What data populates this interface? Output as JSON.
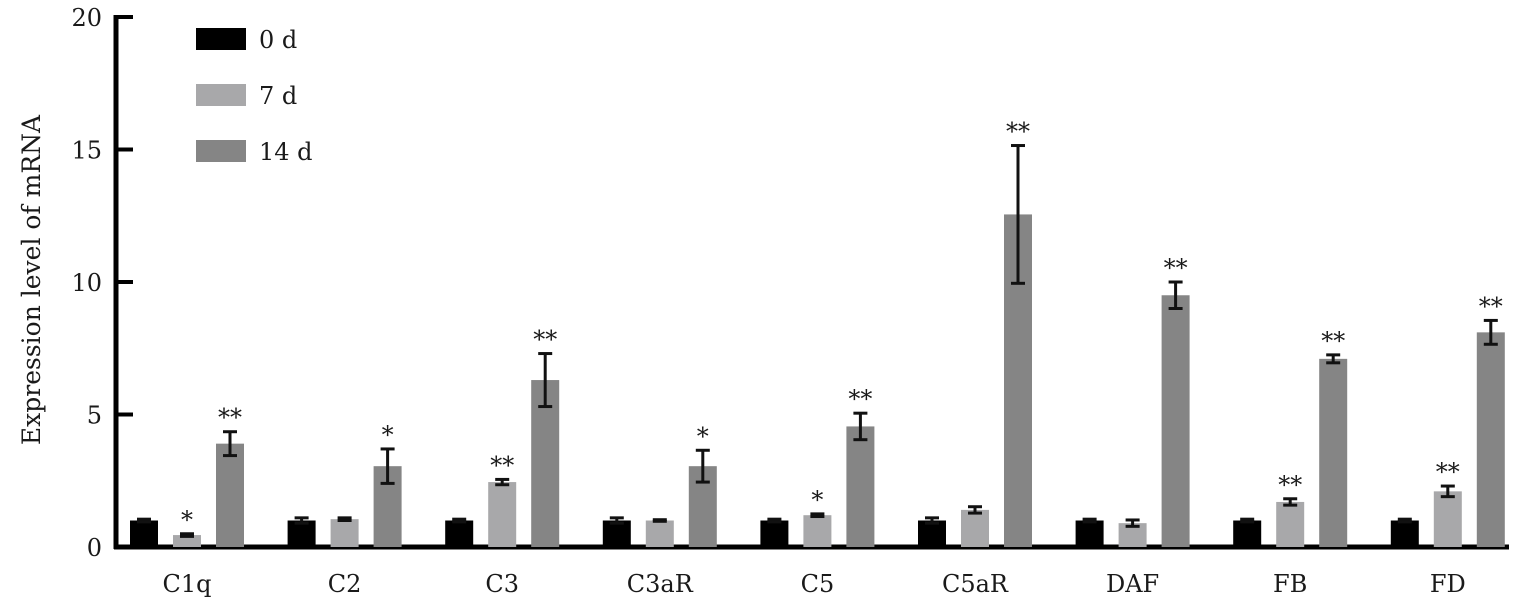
{
  "chart_data": {
    "type": "bar",
    "title": "",
    "xlabel": "",
    "ylabel": "Expression level of mRNA",
    "ylim": [
      0,
      20
    ],
    "yticks": [
      "0",
      "5",
      "10",
      "15",
      "20"
    ],
    "categories": [
      "C1q",
      "C2",
      "C3",
      "C3aR",
      "C5",
      "C5aR",
      "DAF",
      "FB",
      "FD"
    ],
    "legend_position": "top-left",
    "grid": false,
    "series": [
      {
        "name": "0 d",
        "color": "#000000",
        "values": [
          1.0,
          1.0,
          1.0,
          1.0,
          1.0,
          1.0,
          1.0,
          1.0,
          1.0
        ],
        "errors": [
          0.05,
          0.1,
          0.05,
          0.1,
          0.05,
          0.1,
          0.05,
          0.05,
          0.05
        ],
        "significance": [
          "",
          "",
          "",
          "",
          "",
          "",
          "",
          "",
          ""
        ]
      },
      {
        "name": "7 d",
        "color": "#a8a8aa",
        "values": [
          0.45,
          1.05,
          2.45,
          1.0,
          1.2,
          1.4,
          0.9,
          1.7,
          2.1
        ],
        "errors": [
          0.05,
          0.05,
          0.1,
          0.03,
          0.05,
          0.12,
          0.12,
          0.12,
          0.2
        ],
        "significance": [
          "*",
          "",
          "**",
          "",
          "*",
          "",
          "",
          "**",
          "**"
        ]
      },
      {
        "name": "14 d",
        "color": "#858585",
        "values": [
          3.9,
          3.05,
          6.3,
          3.05,
          4.55,
          12.55,
          9.5,
          7.1,
          8.1
        ],
        "errors": [
          0.45,
          0.65,
          1.0,
          0.6,
          0.5,
          2.6,
          0.5,
          0.15,
          0.45
        ],
        "significance": [
          "**",
          "*",
          "**",
          "*",
          "**",
          "**",
          "**",
          "**",
          "**"
        ]
      }
    ]
  }
}
